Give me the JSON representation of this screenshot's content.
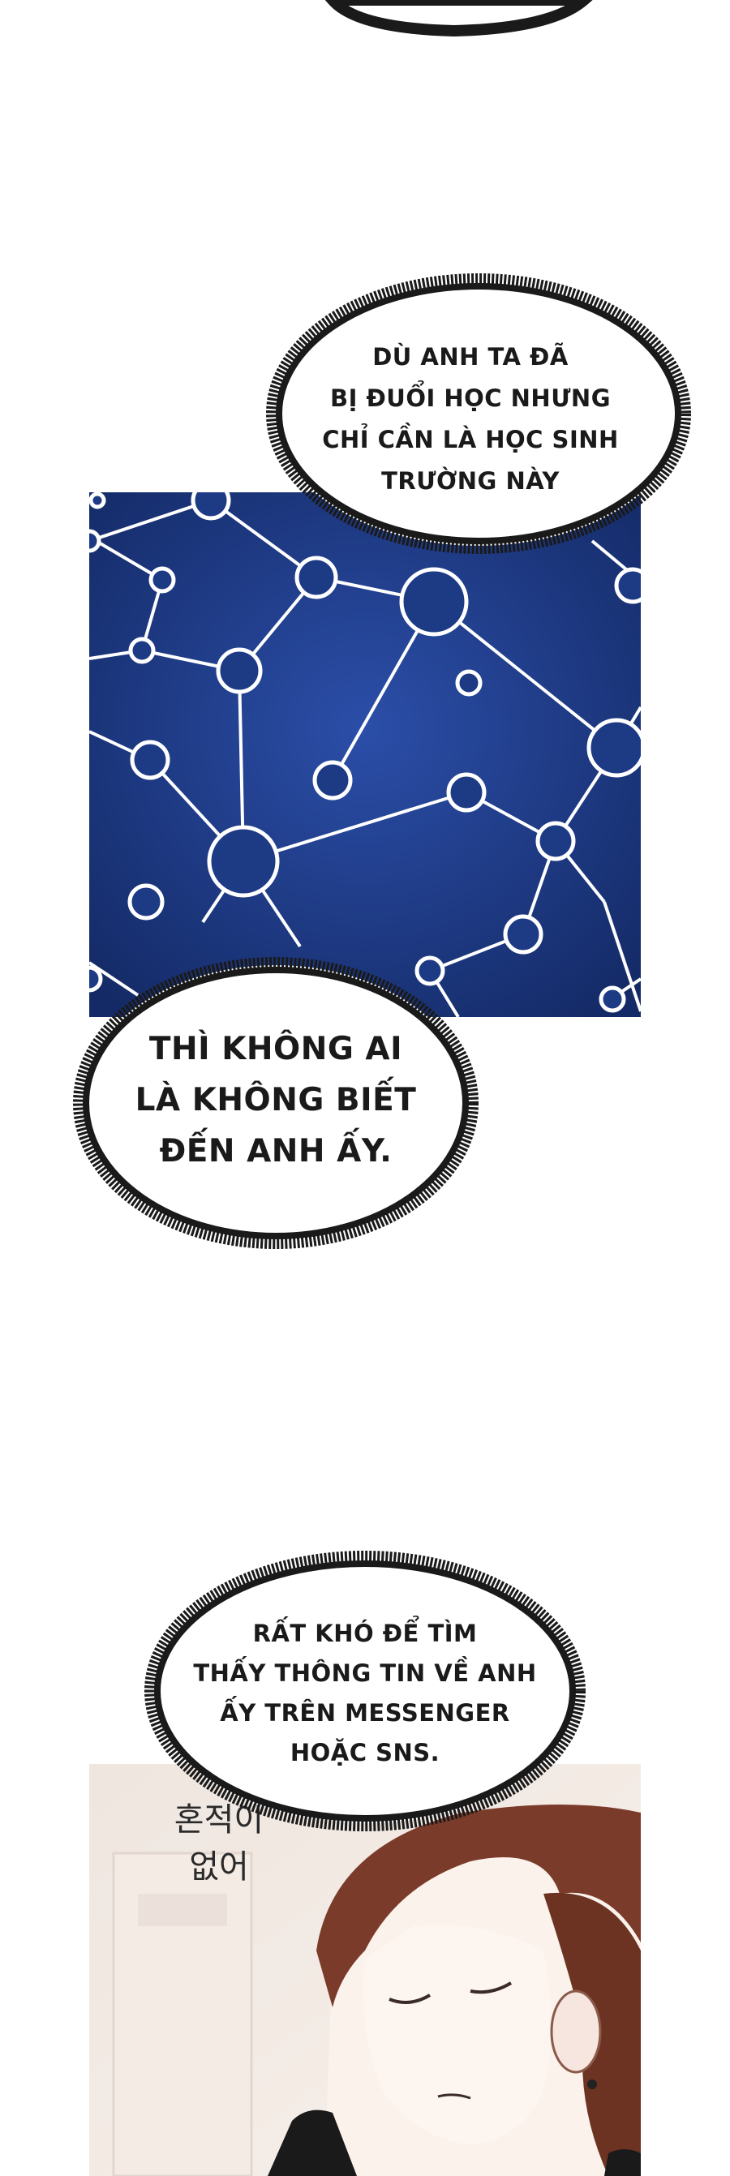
{
  "bubbles": {
    "b1": [
      "DÙ ANH TA ĐÃ",
      "BỊ ĐUỔI HỌC NHƯNG",
      "CHỈ CẦN LÀ HỌC SINH",
      "TRƯỜNG NÀY"
    ],
    "b2": [
      "THÌ KHÔNG AI",
      "LÀ KHÔNG BIẾT",
      "ĐẾN ANH ẤY."
    ],
    "b3": [
      "RẤT KHÓ ĐỂ TÌM",
      "THẤY THÔNG TIN VỀ ANH",
      "ẤY TRÊN MESSENGER",
      "HOẶC SNS."
    ]
  },
  "sfx": [
    "혼적이",
    "없어"
  ],
  "colors": {
    "network_bg": "#1d3a85",
    "bubble_border": "#1a1a1a",
    "hair": "#7a3b2a"
  }
}
